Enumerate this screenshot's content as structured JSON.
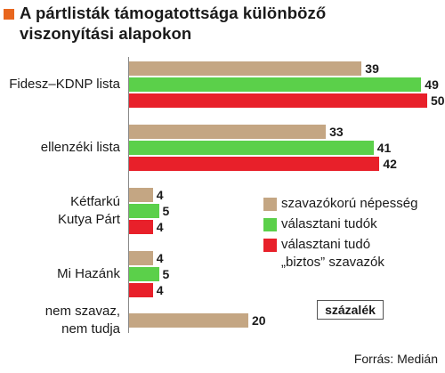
{
  "chart_data": {
    "type": "bar",
    "orientation": "horizontal",
    "title": "A pártlisták támogatottsága különböző viszonyítási alapokon",
    "title_lines": [
      "A pártlisták támogatottsága különböző",
      "viszonyítási alapokon"
    ],
    "categories": [
      "Fidesz–KDNP lista",
      "ellenzéki lista",
      "Kétfarkú Kutya Párt",
      "Mi Hazánk",
      "nem szavaz, nem tudja"
    ],
    "category_lines": [
      [
        "Fidesz–KDNP lista"
      ],
      [
        "ellenzéki lista"
      ],
      [
        "Kétfarkú",
        "Kutya Párt"
      ],
      [
        "Mi Hazánk"
      ],
      [
        "nem szavaz,",
        "nem tudja"
      ]
    ],
    "series": [
      {
        "name": "szavazókorú népesség",
        "color": "#c4a683",
        "values": [
          39,
          33,
          4,
          4,
          20
        ]
      },
      {
        "name": "választani tudók",
        "color": "#5bd04a",
        "values": [
          49,
          41,
          5,
          5,
          null
        ]
      },
      {
        "name": "választani tudó „biztos” szavazók",
        "color": "#e8202a",
        "values": [
          50,
          42,
          4,
          4,
          null
        ]
      }
    ],
    "legend_lines": [
      [
        "szavazókorú népesség"
      ],
      [
        "választani tudók"
      ],
      [
        "választani tudó",
        "„biztos” szavazók"
      ]
    ],
    "unit": "százalék",
    "source": "Forrás: Medián",
    "xlim": [
      0,
      50
    ],
    "legend_position": "right",
    "grid": false
  }
}
